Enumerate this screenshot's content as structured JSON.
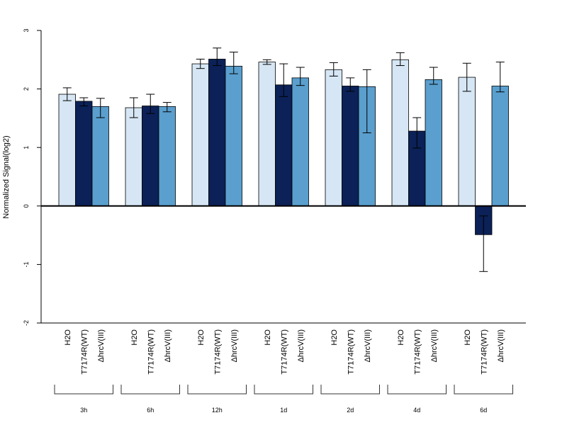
{
  "chart_data": {
    "type": "bar",
    "title": "",
    "xlabel": "",
    "ylabel": "Normalized Signal(log2)",
    "ylim": [
      -2,
      3
    ],
    "yticks": [
      -2,
      -1,
      0,
      1,
      2,
      3
    ],
    "grid": false,
    "legend": "none",
    "groups": [
      "3h",
      "6h",
      "12h",
      "1d",
      "2d",
      "4d",
      "6d"
    ],
    "series": [
      {
        "name": "H2O",
        "color": "#d6e6f4",
        "values": [
          1.91,
          1.68,
          2.43,
          2.46,
          2.33,
          2.5,
          2.2
        ],
        "error_low": [
          1.8,
          1.51,
          2.35,
          2.42,
          2.22,
          2.4,
          1.96
        ],
        "error_high": [
          2.02,
          1.85,
          2.51,
          2.5,
          2.45,
          2.62,
          2.44
        ]
      },
      {
        "name": "T7174R(WT)",
        "color": "#0b2157",
        "values": [
          1.79,
          1.71,
          2.51,
          2.07,
          2.05,
          1.28,
          -0.49
        ],
        "error_low": [
          1.71,
          1.58,
          2.4,
          1.87,
          1.96,
          0.99,
          -1.12
        ],
        "error_high": [
          1.85,
          1.91,
          2.7,
          2.43,
          2.19,
          1.51,
          -0.17
        ]
      },
      {
        "name": "ΔhrcV(III)",
        "color": "#5a9fce",
        "values": [
          1.7,
          1.7,
          2.39,
          2.19,
          2.04,
          2.16,
          2.05
        ],
        "error_low": [
          1.51,
          1.61,
          2.26,
          2.06,
          1.25,
          2.08,
          1.95
        ],
        "error_high": [
          1.84,
          1.77,
          2.63,
          2.37,
          2.33,
          2.37,
          2.46
        ]
      }
    ]
  }
}
